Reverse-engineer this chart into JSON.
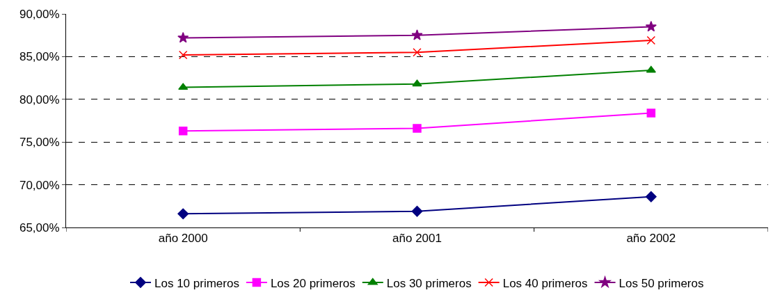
{
  "chart_data": {
    "type": "line",
    "categories": [
      "año 2000",
      "año 2001",
      "año 2002"
    ],
    "series": [
      {
        "name": "Los 10 primeros",
        "color": "#000080",
        "marker": "diamond",
        "values": [
          66.6,
          66.9,
          68.6
        ]
      },
      {
        "name": "Los 20 primeros",
        "color": "#ff00ff",
        "marker": "square",
        "values": [
          76.3,
          76.6,
          78.4
        ]
      },
      {
        "name": "Los 30 primeros",
        "color": "#008000",
        "marker": "triangle",
        "values": [
          81.4,
          81.8,
          83.4
        ]
      },
      {
        "name": "Los 40 primeros",
        "color": "#ff0000",
        "marker": "cross",
        "values": [
          85.2,
          85.5,
          86.9
        ]
      },
      {
        "name": "Los 50 primeros",
        "color": "#800080",
        "marker": "star",
        "values": [
          87.2,
          87.5,
          88.5
        ]
      }
    ],
    "ylim": [
      65,
      90
    ],
    "yticks": [
      {
        "value": 65,
        "label": "65,00%"
      },
      {
        "value": 70,
        "label": "70,00%"
      },
      {
        "value": 75,
        "label": "75,00%"
      },
      {
        "value": 80,
        "label": "80,00%"
      },
      {
        "value": 85,
        "label": "85,00%"
      },
      {
        "value": 90,
        "label": "90,00%"
      }
    ],
    "grid": "y",
    "legend": "bottom",
    "line_style": "solid"
  }
}
